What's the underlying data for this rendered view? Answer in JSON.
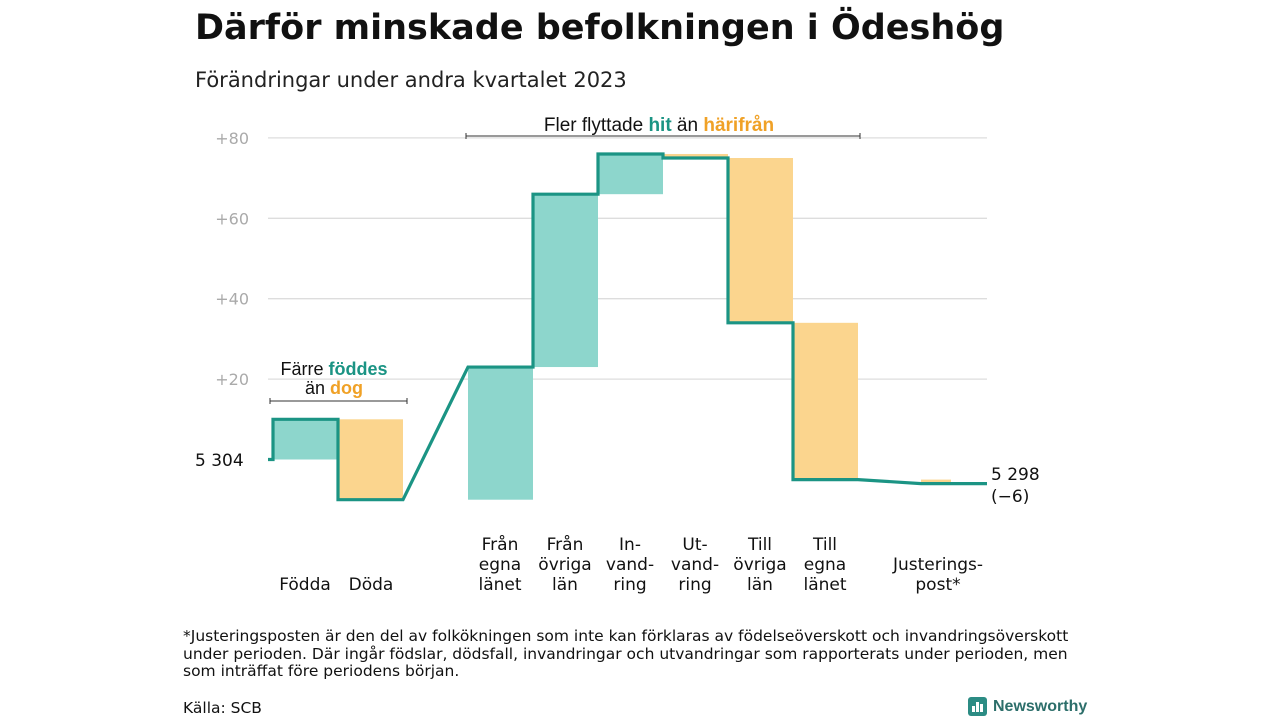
{
  "title": "Därför minskade befolkningen i Ödeshög",
  "subtitle": "Förändringar under andra kvartalet 2023",
  "chart_data": {
    "type": "waterfall",
    "start_value": 5304,
    "start_label": "5  304",
    "end_label_line1": "5 298",
    "end_label_line2": "(−6)",
    "ylim": [
      -10,
      82
    ],
    "yticks": [
      {
        "value": 80,
        "label": "+80"
      },
      {
        "value": 60,
        "label": "+60"
      },
      {
        "value": 40,
        "label": "+40"
      },
      {
        "value": 20,
        "label": "+20"
      }
    ],
    "grid": true,
    "steps": [
      {
        "lines": [
          "Födda"
        ],
        "change": 10,
        "kind": "in"
      },
      {
        "lines": [
          "Döda"
        ],
        "change": -20,
        "kind": "out"
      },
      {
        "lines": [
          "Från",
          "egna",
          "länet"
        ],
        "change": 33,
        "kind": "in"
      },
      {
        "lines": [
          "Från",
          "övriga",
          "län"
        ],
        "change": 43,
        "kind": "in"
      },
      {
        "lines": [
          "In-",
          "vand-",
          "ring"
        ],
        "change": 10,
        "kind": "in"
      },
      {
        "lines": [
          "Ut-",
          "vand-",
          "ring"
        ],
        "change": -1,
        "kind": "out"
      },
      {
        "lines": [
          "Till",
          "övriga",
          "län"
        ],
        "change": -41,
        "kind": "out"
      },
      {
        "lines": [
          "Till",
          "egna",
          "länet"
        ],
        "change": -39,
        "kind": "out"
      },
      {
        "lines": [
          "Justerings-",
          "post*"
        ],
        "change": -1,
        "kind": "out"
      }
    ],
    "annotations": {
      "left": {
        "line1_pre": "Färre ",
        "line1_key": "föddes",
        "line2_pre": "än ",
        "line2_key": "dog"
      },
      "top": {
        "pre": "Fler flyttade ",
        "key_in": "hit",
        "mid": " än ",
        "key_out": "härifrån"
      }
    },
    "colors": {
      "in_fill": "#8dd6cc",
      "out_fill": "#fbd58e",
      "line": "#1b9484",
      "in_text": "#1b9484",
      "out_text": "#f0a126",
      "grid": "#dddddd",
      "tick": "#aaaaaa"
    }
  },
  "footnote": "*Justeringsposten är den del av folkökningen som inte kan förklaras av födelseöverskott och invandringsöverskott under perioden. Där ingår födslar, dödsfall, invandringar och utvandringar som rapporterats under perioden, men som inträffat före periodens början.",
  "source": "Källa: SCB",
  "brand": {
    "name": "Newsworthy",
    "icon": "bar-chart-icon"
  }
}
